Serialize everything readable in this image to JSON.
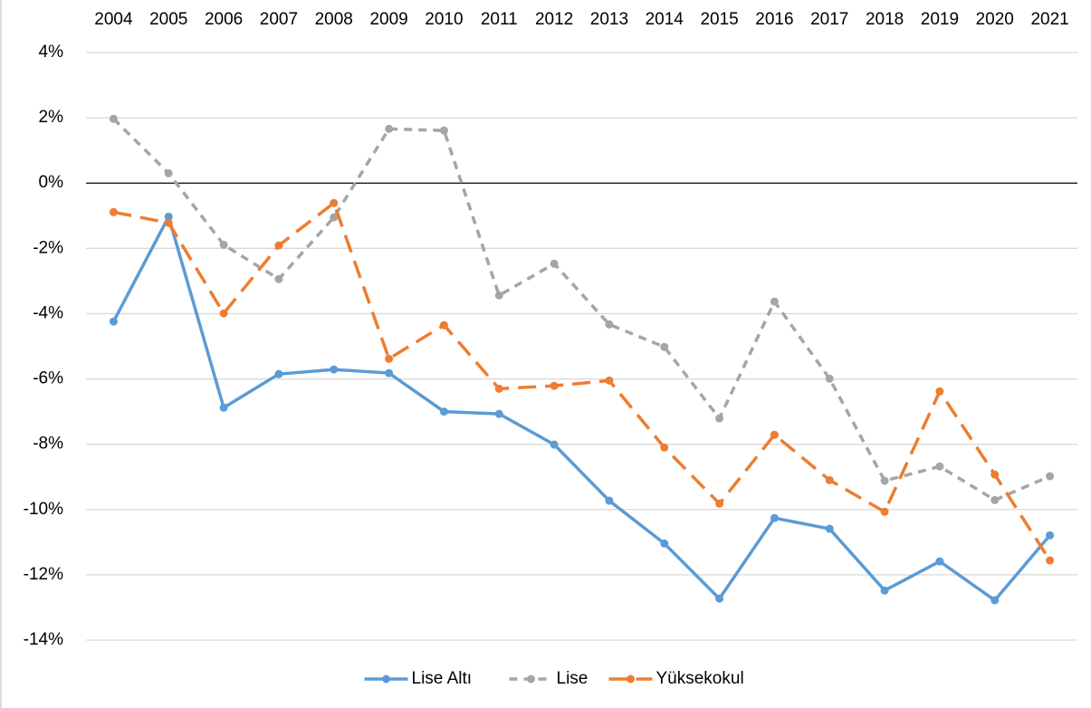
{
  "chart_data": {
    "type": "line",
    "categories": [
      "2004",
      "2005",
      "2006",
      "2007",
      "2008",
      "2009",
      "2010",
      "2011",
      "2012",
      "2013",
      "2014",
      "2015",
      "2016",
      "2017",
      "2018",
      "2019",
      "2020",
      "2021"
    ],
    "series": [
      {
        "name": "Lise Altı",
        "color": "#5b9bd5",
        "line_style": "solid",
        "values": [
          -4.24,
          -1.03,
          -6.88,
          -5.85,
          -5.71,
          -5.82,
          -7.0,
          -7.07,
          -8.01,
          -9.73,
          -11.04,
          -12.73,
          -10.26,
          -10.59,
          -12.48,
          -11.59,
          -12.78,
          -10.79
        ]
      },
      {
        "name": "Lise",
        "color": "#a5a5a5",
        "line_style": "dotted",
        "values": [
          1.97,
          0.3,
          -1.89,
          -2.94,
          -1.05,
          1.66,
          1.61,
          -3.44,
          -2.47,
          -4.33,
          -5.02,
          -7.21,
          -3.63,
          -5.99,
          -9.12,
          -8.68,
          -9.71,
          -8.98
        ]
      },
      {
        "name": "Yüksekokul",
        "color": "#ed7d31",
        "line_style": "dashed",
        "values": [
          -0.89,
          -1.22,
          -3.99,
          -1.91,
          -0.61,
          -5.38,
          -4.35,
          -6.3,
          -6.21,
          -6.05,
          -8.1,
          -9.82,
          -7.71,
          -9.1,
          -10.07,
          -6.38,
          -8.93,
          -11.56
        ]
      }
    ],
    "ylim": [
      -14,
      4
    ],
    "yticks": [
      {
        "value": -14,
        "label": "-14%"
      },
      {
        "value": -12,
        "label": "-12%"
      },
      {
        "value": -10,
        "label": "-10%"
      },
      {
        "value": -8,
        "label": "-8%"
      },
      {
        "value": -6,
        "label": "-6%"
      },
      {
        "value": -4,
        "label": "-4%"
      },
      {
        "value": -2,
        "label": "-2%"
      },
      {
        "value": 0,
        "label": "0%"
      },
      {
        "value": 2,
        "label": "2%"
      },
      {
        "value": 4,
        "label": "4%"
      }
    ],
    "grid": true,
    "x_axis_position": "top",
    "legend": "bottom"
  }
}
